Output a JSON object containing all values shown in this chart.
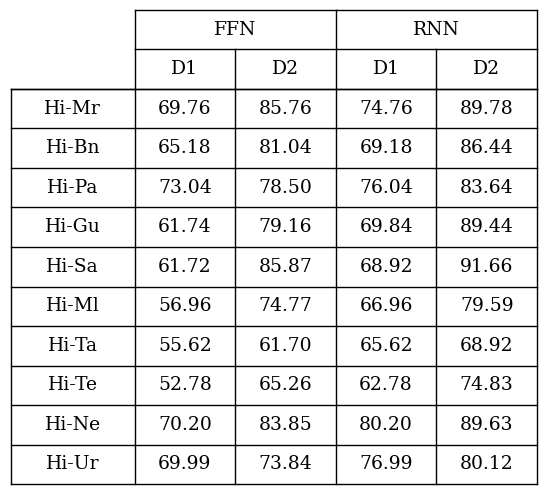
{
  "row_labels": [
    "Hi-Mr",
    "Hi-Bn",
    "Hi-Pa",
    "Hi-Gu",
    "Hi-Sa",
    "Hi-Ml",
    "Hi-Ta",
    "Hi-Te",
    "Hi-Ne",
    "Hi-Ur"
  ],
  "col_groups": [
    "FFN",
    "RNN"
  ],
  "col_subheaders": [
    "D1",
    "D2",
    "D1",
    "D2"
  ],
  "data": [
    [
      "69.76",
      "85.76",
      "74.76",
      "89.78"
    ],
    [
      "65.18",
      "81.04",
      "69.18",
      "86.44"
    ],
    [
      "73.04",
      "78.50",
      "76.04",
      "83.64"
    ],
    [
      "61.74",
      "79.16",
      "69.84",
      "89.44"
    ],
    [
      "61.72",
      "85.87",
      "68.92",
      "91.66"
    ],
    [
      "56.96",
      "74.77",
      "66.96",
      "79.59"
    ],
    [
      "55.62",
      "61.70",
      "65.62",
      "68.92"
    ],
    [
      "52.78",
      "65.26",
      "62.78",
      "74.83"
    ],
    [
      "70.20",
      "83.85",
      "80.20",
      "89.63"
    ],
    [
      "69.99",
      "73.84",
      "76.99",
      "80.12"
    ]
  ],
  "background_color": "#ffffff",
  "text_color": "#000000",
  "font_size": 13.5,
  "figsize": [
    5.48,
    4.94
  ],
  "dpi": 100,
  "lw": 1.0
}
